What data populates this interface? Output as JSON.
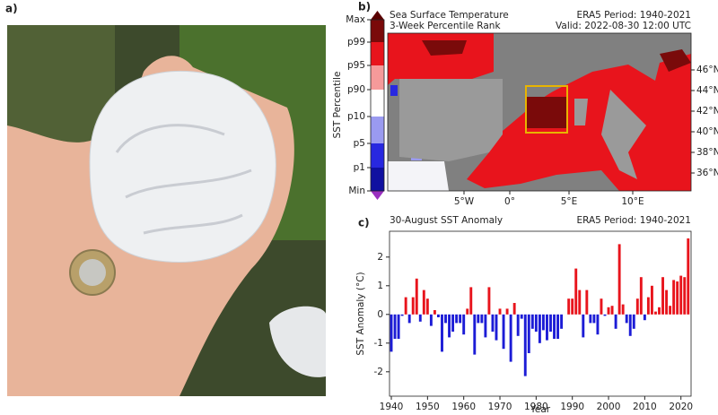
{
  "panel_a": {
    "label": "a)"
  },
  "panel_b": {
    "label": "b)",
    "title_left": [
      "Sea Surface Temperature",
      "3-Week Percentile Rank"
    ],
    "title_right": [
      "ERA5 Period: 1940-2021",
      "Valid: 2022-08-30 12:00 UTC"
    ],
    "colorbar_label": "SST Percentile",
    "colorbar_ticks": [
      "Max",
      "p99",
      "p95",
      "p90",
      "p10",
      "p5",
      "p1",
      "Min"
    ],
    "lat_ticks": [
      "46°N",
      "44°N",
      "42°N",
      "40°N",
      "38°N",
      "36°N"
    ],
    "lon_ticks": [
      "5°W",
      "0°",
      "5°E",
      "10°E"
    ]
  },
  "chart_data": {
    "type": "bar",
    "label": "c)",
    "title": "30-August SST Anomaly",
    "subtitle": "ERA5 Period: 1940-2021",
    "x_label": "Year",
    "y_label": "SST Anomaly (°C)",
    "x": [
      1940,
      1941,
      1942,
      1943,
      1944,
      1945,
      1946,
      1947,
      1948,
      1949,
      1950,
      1951,
      1952,
      1953,
      1954,
      1955,
      1956,
      1957,
      1958,
      1959,
      1960,
      1961,
      1962,
      1963,
      1964,
      1965,
      1966,
      1967,
      1968,
      1969,
      1970,
      1971,
      1972,
      1973,
      1974,
      1975,
      1976,
      1977,
      1978,
      1979,
      1980,
      1981,
      1982,
      1983,
      1984,
      1985,
      1986,
      1987,
      1988,
      1989,
      1990,
      1991,
      1992,
      1993,
      1994,
      1995,
      1996,
      1997,
      1998,
      1999,
      2000,
      2001,
      2002,
      2003,
      2004,
      2005,
      2006,
      2007,
      2008,
      2009,
      2010,
      2011,
      2012,
      2013,
      2014,
      2015,
      2016,
      2017,
      2018,
      2019,
      2020,
      2021,
      2022
    ],
    "values": [
      -1.3,
      -0.85,
      -0.85,
      -0.05,
      0.6,
      -0.3,
      0.6,
      1.25,
      -0.25,
      0.85,
      0.55,
      -0.4,
      0.15,
      -0.1,
      -1.3,
      -0.3,
      -0.8,
      -0.6,
      -0.3,
      -0.3,
      -0.7,
      0.2,
      0.95,
      -1.4,
      -0.3,
      -0.3,
      -0.8,
      0.95,
      -0.6,
      -0.9,
      0.2,
      -1.2,
      0.2,
      -1.65,
      0.4,
      -0.75,
      -0.15,
      -2.15,
      -1.35,
      -0.5,
      -0.6,
      -1.0,
      -0.55,
      -0.9,
      -0.6,
      -0.85,
      -0.85,
      -0.5,
      0.0,
      0.55,
      0.55,
      1.6,
      0.85,
      -0.8,
      0.85,
      -0.3,
      -0.3,
      -0.7,
      0.55,
      -0.05,
      0.25,
      0.3,
      -0.5,
      2.45,
      0.35,
      -0.3,
      -0.75,
      -0.5,
      0.55,
      1.3,
      -0.2,
      0.6,
      1.0,
      0.1,
      0.25,
      1.3,
      0.85,
      0.3,
      1.2,
      1.15,
      1.35,
      1.3,
      2.65
    ],
    "color_positive": "#e8141c",
    "color_negative": "#1c1cd6",
    "xlim": [
      1939.5,
      2022.8
    ],
    "xticks": [
      1940,
      1950,
      1960,
      1970,
      1980,
      1990,
      2000,
      2010,
      2020
    ],
    "ylim": [
      -2.85,
      2.9
    ],
    "yticks": [
      -2,
      -1,
      0,
      1,
      2
    ]
  }
}
